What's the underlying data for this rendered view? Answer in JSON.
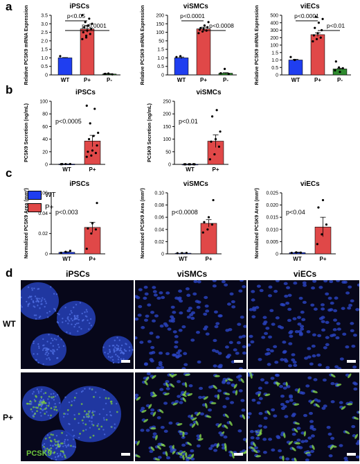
{
  "panels": {
    "a": "a",
    "b": "b",
    "c": "c",
    "d": "d"
  },
  "colors": {
    "WT": "#1f3ef0",
    "P+": "#e04848",
    "P-": "#2e8a2e"
  },
  "legend": {
    "items": [
      {
        "name": "WT",
        "color": "#1f3ef0"
      },
      {
        "name": "P+",
        "color": "#e04848"
      }
    ]
  },
  "chart_data": [
    {
      "id": "a1",
      "type": "bar",
      "panel": "a",
      "title": "iPSCs",
      "ylabel": "Relative PCSK9 mRNA Expression",
      "categories": [
        "WT",
        "P+",
        "P-"
      ],
      "values": [
        1.0,
        2.7,
        0.05
      ],
      "errors": [
        0.02,
        0.2,
        0.02
      ],
      "yscale": "linear",
      "ylim": [
        0,
        3.5
      ],
      "yticks": [
        "0",
        "0.5",
        "1.0",
        "1.5",
        "2.0",
        "2.5",
        "3.0",
        "3.5"
      ],
      "ytickvals": [
        0,
        0.5,
        1.0,
        1.5,
        2.0,
        2.5,
        3.0,
        3.5
      ],
      "points": [
        [
          1.1
        ],
        [
          2.1,
          2.3,
          2.4,
          2.5,
          2.6,
          2.7,
          2.8,
          2.9,
          3.0,
          3.1,
          3.3,
          3.6,
          2.2
        ],
        [
          0.05,
          0.08,
          0.03,
          0.06
        ]
      ],
      "annotations": [
        {
          "text": "p<0.05",
          "from": 0,
          "to": 1
        },
        {
          "text": "p<0.0001",
          "from": 0,
          "to": 2
        }
      ]
    },
    {
      "id": "a2",
      "type": "bar",
      "panel": "a",
      "title": "viSMCs",
      "ylabel": "Relative PCSK9 mRNA Expression",
      "categories": [
        "WT",
        "P+",
        "P-"
      ],
      "values": [
        1.0,
        120,
        0.1
      ],
      "errors": [
        0.05,
        10,
        0.03
      ],
      "yscale": "log",
      "ylim": [
        0,
        200
      ],
      "yticks": [
        "0",
        "0.5",
        "1.0",
        "1.5",
        "50",
        "100",
        "150",
        "200"
      ],
      "ytickvals": [
        0,
        0.5,
        1.0,
        1.5,
        50,
        100,
        150,
        200
      ],
      "points": [
        [
          1.05,
          1.1
        ],
        [
          95,
          105,
          110,
          115,
          120,
          130,
          125,
          140,
          160
        ],
        [
          0.1,
          0.35,
          0.06
        ]
      ],
      "annotations": [
        {
          "text": "p<0.0001",
          "from": 0,
          "to": 1
        },
        {
          "text": "p<0.0008",
          "from": 1,
          "to": 2
        }
      ]
    },
    {
      "id": "a3",
      "type": "bar",
      "panel": "a",
      "title": "viECs",
      "ylabel": "Relative PCSK9 mRNA Expression",
      "categories": [
        "WT",
        "P+",
        "P-"
      ],
      "values": [
        1.0,
        240,
        0.4
      ],
      "errors": [
        0.05,
        25,
        0.05
      ],
      "yscale": "log",
      "ylim": [
        0,
        500
      ],
      "yticks": [
        "0",
        "0.5",
        "1.0",
        "1.5",
        "100",
        "200",
        "300",
        "400",
        "500"
      ],
      "ytickvals": [
        0,
        0.5,
        1.0,
        1.5,
        100,
        200,
        300,
        400,
        500
      ],
      "points": [
        [
          1.2,
          1.0
        ],
        [
          150,
          180,
          200,
          230,
          260,
          300,
          330,
          400,
          450,
          480
        ],
        [
          0.3,
          0.5,
          0.45,
          0.9,
          0.2
        ]
      ],
      "annotations": [
        {
          "text": "p<0.0001",
          "from": 0,
          "to": 1
        },
        {
          "text": "p<0.01",
          "from": 1,
          "to": 2
        }
      ]
    },
    {
      "id": "b1",
      "type": "bar",
      "panel": "b",
      "title": "iPSCs",
      "ylabel": "PCSK9 Secretion (ng/mL)",
      "categories": [
        "WT",
        "P+"
      ],
      "values": [
        0.5,
        37
      ],
      "errors": [
        0.2,
        9
      ],
      "yscale": "linear",
      "ylim": [
        0,
        100
      ],
      "yticks": [
        "0",
        "20",
        "40",
        "60",
        "80",
        "100"
      ],
      "ytickvals": [
        0,
        20,
        40,
        60,
        80,
        100
      ],
      "points": [
        [
          0.3,
          0.5,
          0.6,
          0.4
        ],
        [
          12,
          14,
          18,
          20,
          22,
          30,
          40,
          45,
          50,
          65,
          88,
          93
        ]
      ],
      "annotations": [
        {
          "text": "p<0.0005"
        }
      ]
    },
    {
      "id": "b2",
      "type": "bar",
      "panel": "b",
      "title": "viSMCs",
      "ylabel": "PCSK9 Secretion (ng/mL)",
      "categories": [
        "WT",
        "P+"
      ],
      "values": [
        0.5,
        92
      ],
      "errors": [
        0.2,
        25
      ],
      "yscale": "linear",
      "ylim": [
        0,
        250
      ],
      "yticks": [
        "0",
        "50",
        "100",
        "150",
        "200",
        "250"
      ],
      "ytickvals": [
        0,
        50,
        100,
        150,
        200,
        250
      ],
      "points": [
        [
          0.3,
          0.5,
          0.6,
          0.4,
          0.5,
          0.4
        ],
        [
          20,
          40,
          70,
          90,
          100,
          130,
          190,
          215
        ]
      ],
      "annotations": [
        {
          "text": "p<0.01"
        }
      ]
    },
    {
      "id": "c1",
      "type": "bar",
      "panel": "c",
      "title": "iPSCs",
      "ylabel": "Normalized PCSK9 Area (mm²)",
      "categories": [
        "WT",
        "P+"
      ],
      "values": [
        0.0015,
        0.026
      ],
      "errors": [
        0.0005,
        0.005
      ],
      "yscale": "linear",
      "ylim": [
        0,
        0.06
      ],
      "yticks": [
        "0",
        "0.02",
        "0.04",
        "0.06"
      ],
      "ytickvals": [
        0,
        0.02,
        0.04,
        0.06
      ],
      "points": [
        [
          0.001,
          0.002,
          0.003
        ],
        [
          0.005,
          0.02,
          0.024,
          0.025,
          0.03,
          0.05
        ]
      ],
      "annotations": [
        {
          "text": "p<0.003"
        }
      ]
    },
    {
      "id": "c2",
      "type": "bar",
      "panel": "c",
      "title": "viSMCs",
      "ylabel": "Normalized PCSK9 Area (mm²)",
      "categories": [
        "WT",
        "P+"
      ],
      "values": [
        0.001,
        0.05
      ],
      "errors": [
        0.0003,
        0.006
      ],
      "yscale": "linear",
      "ylim": [
        0,
        0.1
      ],
      "yticks": [
        "0",
        "0.02",
        "0.04",
        "0.06",
        "0.08",
        "0.10"
      ],
      "ytickvals": [
        0,
        0.02,
        0.04,
        0.06,
        0.08,
        0.1
      ],
      "points": [
        [
          0.001,
          0.0012,
          0.0015
        ],
        [
          0.035,
          0.04,
          0.048,
          0.052,
          0.06,
          0.088
        ]
      ],
      "annotations": [
        {
          "text": "p<0.0008"
        }
      ]
    },
    {
      "id": "c3",
      "type": "bar",
      "panel": "c",
      "title": "viECs",
      "ylabel": "Normalized PCSK9 Area (mm²)",
      "categories": [
        "WT",
        "P+"
      ],
      "values": [
        0.0005,
        0.011
      ],
      "errors": [
        0.0002,
        0.004
      ],
      "yscale": "linear",
      "ylim": [
        0,
        0.025
      ],
      "yticks": [
        "0",
        "0.005",
        "0.010",
        "0.015",
        "0.020",
        "0.025"
      ],
      "ytickvals": [
        0,
        0.005,
        0.01,
        0.015,
        0.02,
        0.025
      ],
      "points": [
        [
          0.0004,
          0.0006,
          0.0005
        ],
        [
          0.004,
          0.008,
          0.012,
          0.019,
          0.022
        ]
      ],
      "annotations": [
        {
          "text": "p<0.04"
        }
      ]
    }
  ],
  "micrographs": {
    "columns": [
      "iPSCs",
      "viSMCs",
      "viECs"
    ],
    "rows": [
      "WT",
      "P+"
    ],
    "stain_label": "PCSK9"
  }
}
